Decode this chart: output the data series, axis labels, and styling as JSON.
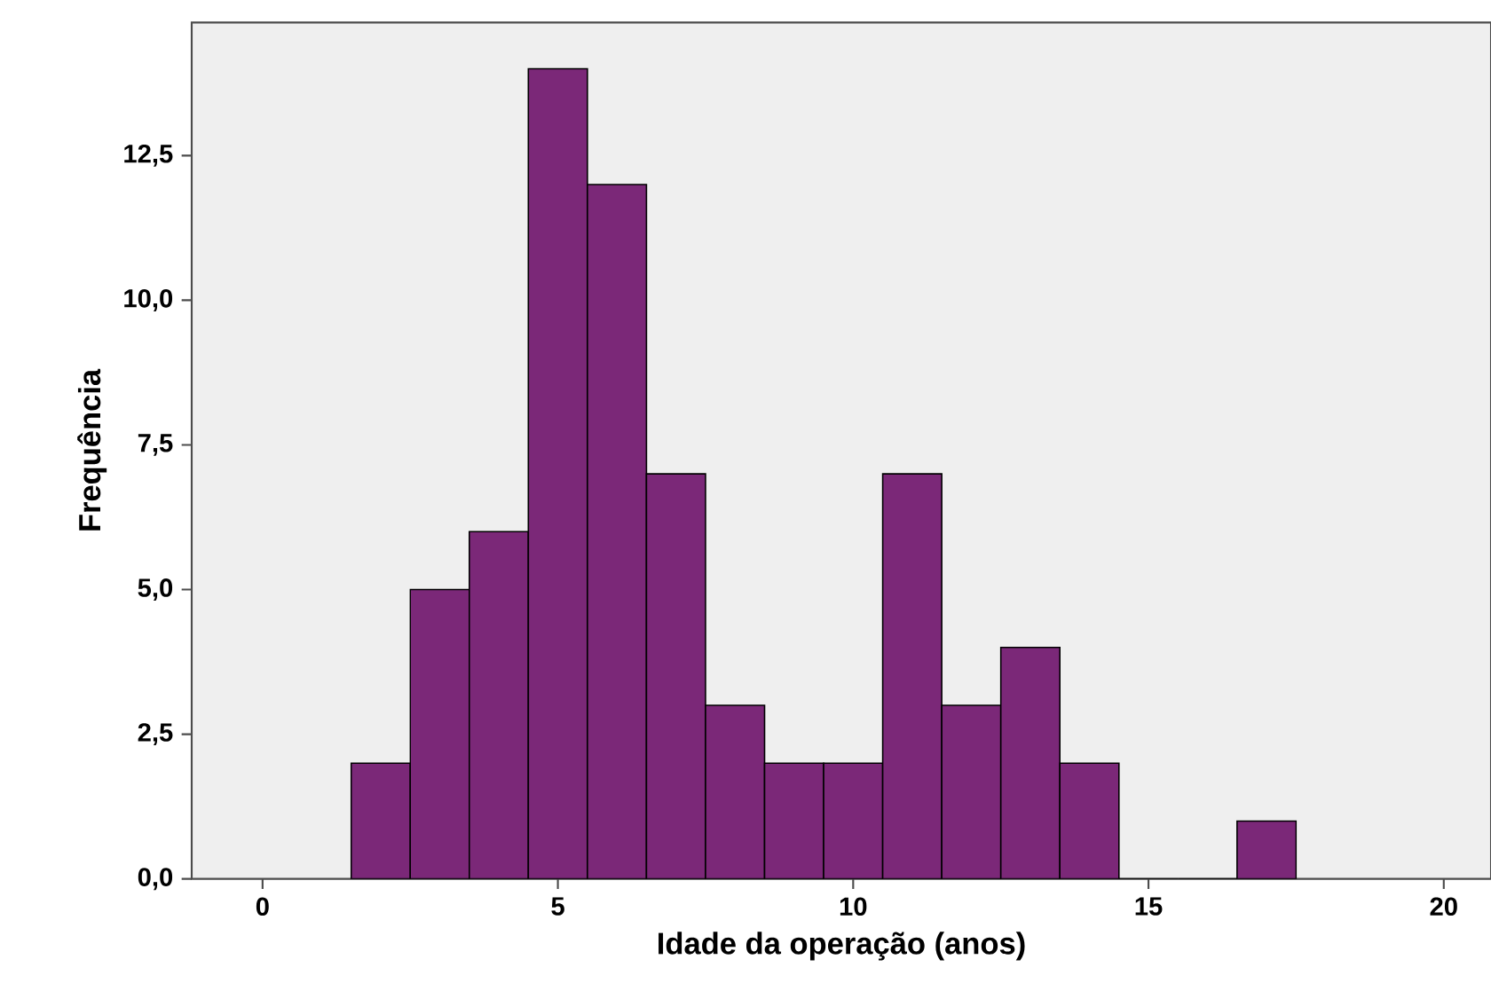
{
  "chart_data": {
    "type": "histogram",
    "xlabel": "Idade da operação (anos)",
    "ylabel": "Frequência",
    "bins": [
      1.5,
      2.5,
      3.5,
      4.5,
      5.5,
      6.5,
      7.5,
      8.5,
      9.5,
      10.5,
      11.5,
      12.5,
      13.5,
      14.5,
      15.5,
      16.5,
      17.5
    ],
    "values": [
      2,
      5,
      6,
      14,
      12,
      7,
      3,
      2,
      2,
      7,
      3,
      4,
      2,
      0,
      0,
      1
    ],
    "color": "#7b2878",
    "xlim": [
      -1.2,
      20.8
    ],
    "ylim": [
      0,
      14.8
    ],
    "xticks": [
      0,
      5,
      10,
      15,
      20
    ],
    "yticks": [
      {
        "value": 0,
        "label": "0,0"
      },
      {
        "value": 2.5,
        "label": "2,5"
      },
      {
        "value": 5,
        "label": "5,0"
      },
      {
        "value": 7.5,
        "label": "7,5"
      },
      {
        "value": 10,
        "label": "10,0"
      },
      {
        "value": 12.5,
        "label": "12,5"
      }
    ],
    "grid": false
  }
}
